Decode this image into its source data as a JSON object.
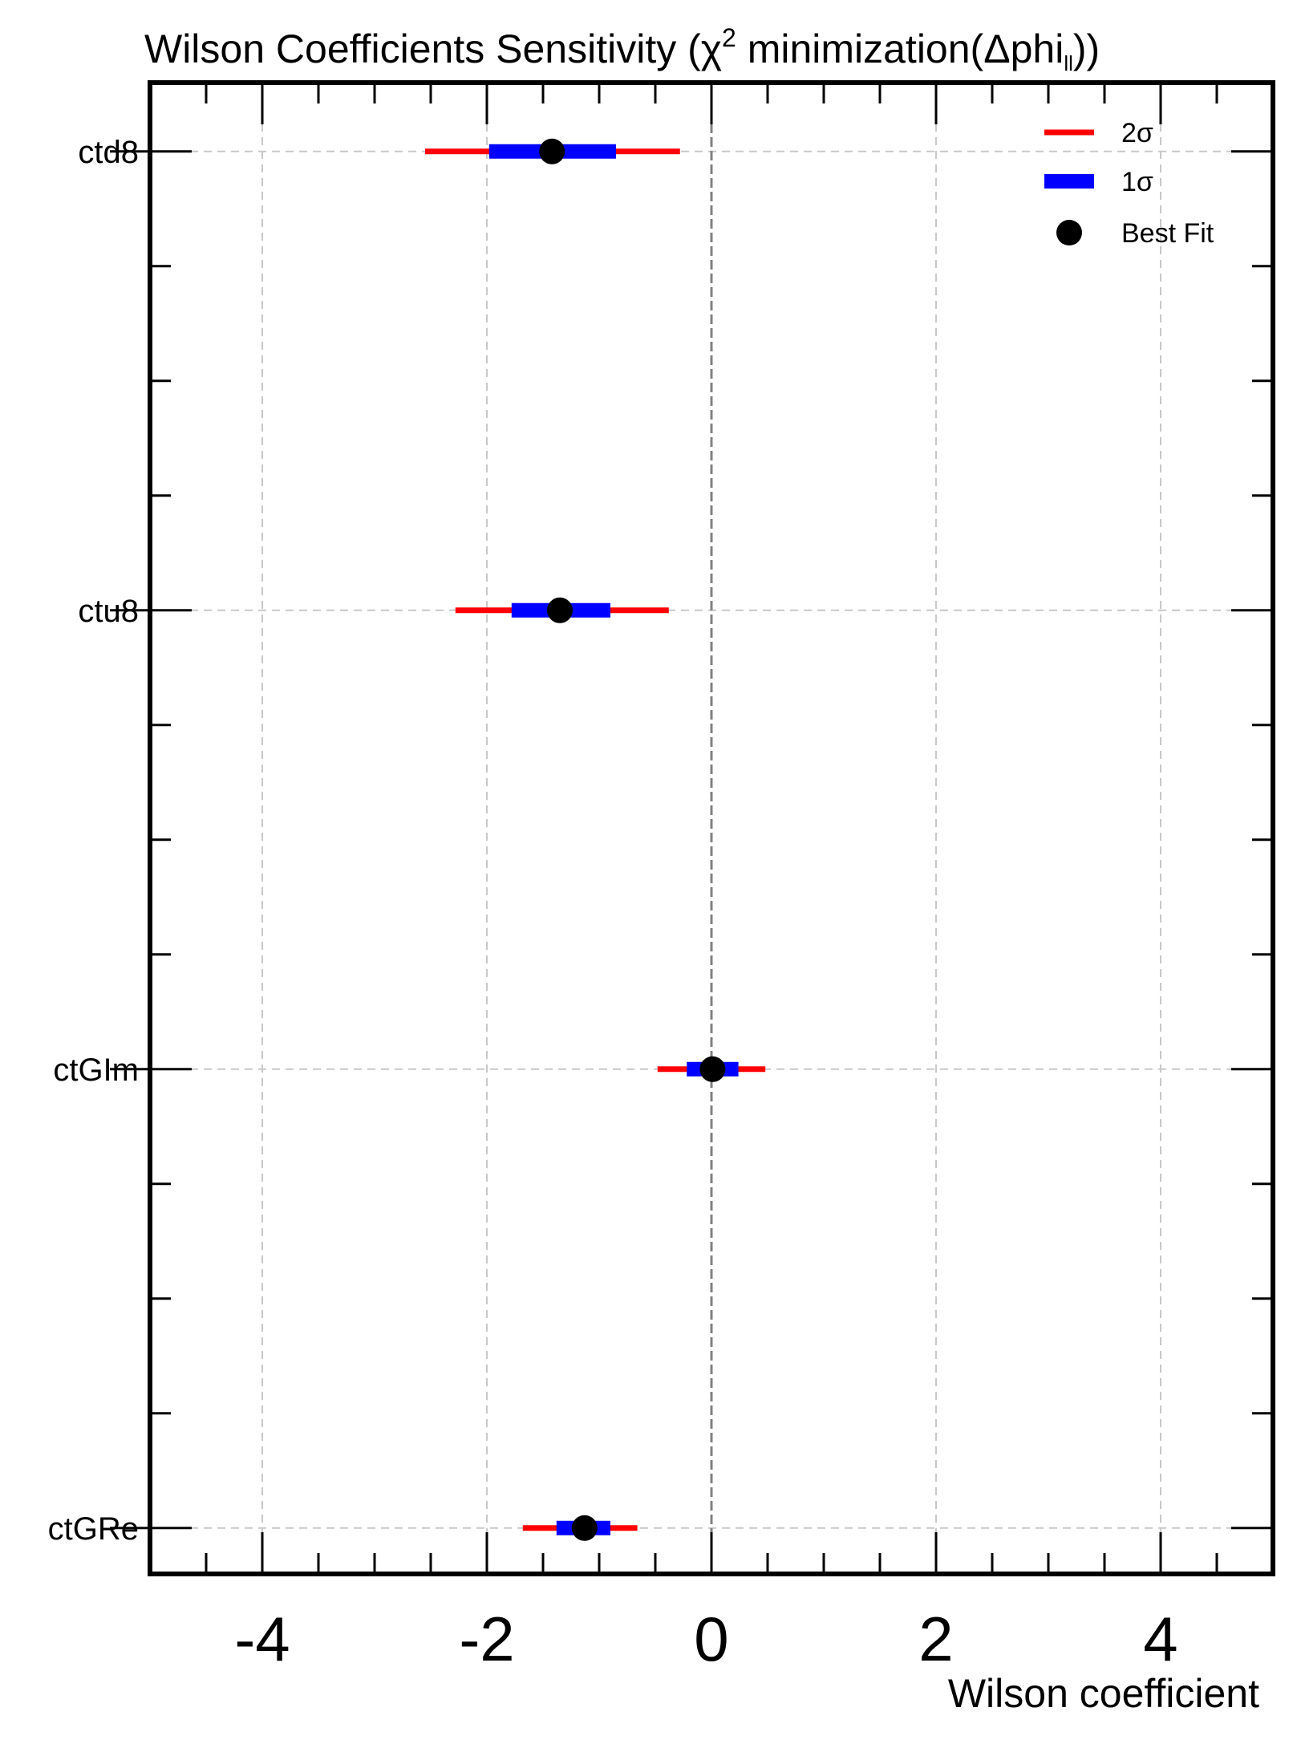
{
  "chart_data": {
    "type": "forest",
    "title": {
      "prefix": "Wilson Coefficients Sensitivity (χ",
      "sup": "2",
      "middle": " minimization(Δphi",
      "sub": "ll",
      "suffix": "))"
    },
    "xlabel": "Wilson coefficient",
    "xlim": [
      -5,
      5
    ],
    "xticks": [
      -4,
      -2,
      0,
      2,
      4
    ],
    "xtick_labels": [
      "-4",
      "-2",
      "0",
      "2",
      "4"
    ],
    "xminor_step": 0.5,
    "ylim": [
      -0.1,
      3.15
    ],
    "grid": true,
    "reference_line_x": 0,
    "legend_position": "top-right",
    "legend": [
      {
        "label": "2σ",
        "kind": "line",
        "color": "#ff0000"
      },
      {
        "label": "1σ",
        "kind": "bar",
        "color": "#0000ff"
      },
      {
        "label": "Best Fit",
        "kind": "marker",
        "color": "#000000"
      }
    ],
    "colors": {
      "two_sigma": "#ff0000",
      "one_sigma": "#0000ff",
      "best_fit": "#000000",
      "grid": "#c8c8c8",
      "zero_line": "#808080"
    },
    "coefficients": [
      {
        "name": "ctd8",
        "y": 3,
        "best_fit": -1.42,
        "one_sigma": [
          -1.98,
          -0.85
        ],
        "two_sigma": [
          -2.55,
          -0.28
        ]
      },
      {
        "name": "ctu8",
        "y": 2,
        "best_fit": -1.35,
        "one_sigma": [
          -1.78,
          -0.9
        ],
        "two_sigma": [
          -2.28,
          -0.38
        ]
      },
      {
        "name": "ctGIm",
        "y": 1,
        "best_fit": 0.01,
        "one_sigma": [
          -0.22,
          0.24
        ],
        "two_sigma": [
          -0.48,
          0.48
        ]
      },
      {
        "name": "ctGRe",
        "y": 0,
        "best_fit": -1.13,
        "one_sigma": [
          -1.38,
          -0.9
        ],
        "two_sigma": [
          -1.68,
          -0.66
        ]
      }
    ]
  }
}
